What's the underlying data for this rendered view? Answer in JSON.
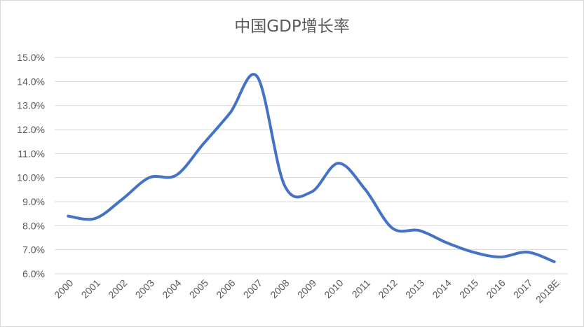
{
  "chart_data": {
    "type": "line",
    "title": "中国GDP增长率",
    "xlabel": "",
    "ylabel": "",
    "x": [
      "2000",
      "2001",
      "2002",
      "2003",
      "2004",
      "2005",
      "2006",
      "2007",
      "2008",
      "2009",
      "2010",
      "2011",
      "2012",
      "2013",
      "2014",
      "2015",
      "2016",
      "2017",
      "2018E"
    ],
    "series": [
      {
        "values": [
          8.4,
          8.3,
          9.1,
          10.0,
          10.1,
          11.4,
          12.7,
          14.2,
          9.7,
          9.4,
          10.6,
          9.5,
          7.9,
          7.8,
          7.3,
          6.9,
          6.7,
          6.9,
          6.5
        ]
      }
    ],
    "ylim": [
      6.0,
      15.0
    ],
    "yticks": [
      "6.0%",
      "7.0%",
      "8.0%",
      "9.0%",
      "10.0%",
      "11.0%",
      "12.0%",
      "13.0%",
      "14.0%",
      "15.0%"
    ],
    "grid": true,
    "legend": "none",
    "line_color": "#4472c4",
    "grid_color": "#d9d9d9"
  }
}
